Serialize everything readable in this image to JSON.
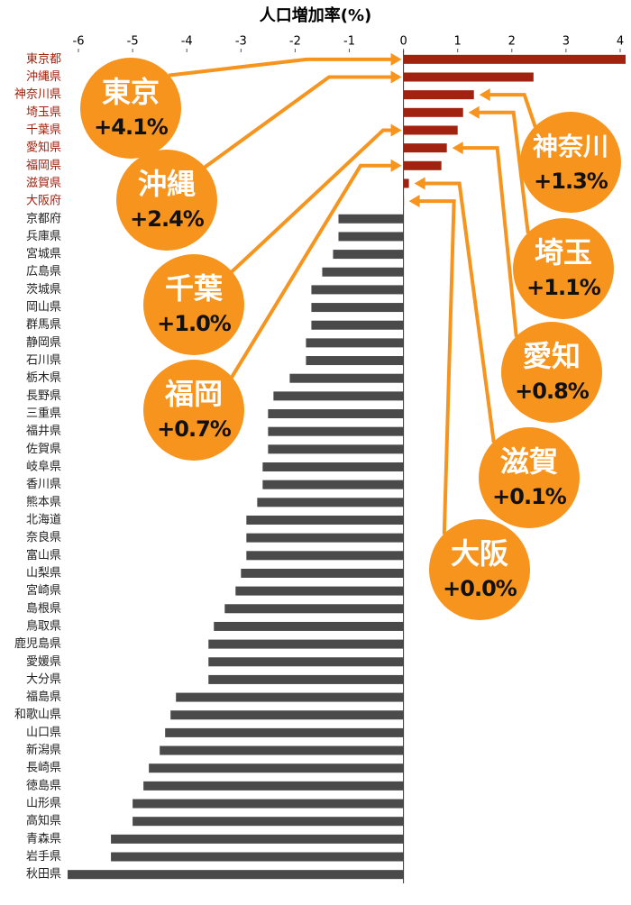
{
  "chart_data": {
    "type": "hbar",
    "title": "人口増加率(%)",
    "categories": [
      "東京都",
      "沖縄県",
      "神奈川県",
      "埼玉県",
      "千葉県",
      "愛知県",
      "福岡県",
      "滋賀県",
      "大阪府",
      "京都府",
      "兵庫県",
      "宮城県",
      "広島県",
      "茨城県",
      "岡山県",
      "群馬県",
      "静岡県",
      "石川県",
      "栃木県",
      "長野県",
      "三重県",
      "福井県",
      "佐賀県",
      "岐阜県",
      "香川県",
      "熊本県",
      "北海道",
      "奈良県",
      "富山県",
      "山梨県",
      "宮崎県",
      "島根県",
      "鳥取県",
      "鹿児島県",
      "愛媛県",
      "大分県",
      "福島県",
      "和歌山県",
      "山口県",
      "新潟県",
      "長崎県",
      "徳島県",
      "山形県",
      "高知県",
      "青森県",
      "岩手県",
      "秋田県"
    ],
    "series": [
      {
        "values": [
          4.1,
          2.4,
          1.3,
          1.1,
          1.0,
          0.8,
          0.7,
          0.1,
          0.0,
          -1.2,
          -1.2,
          -1.3,
          -1.5,
          -1.7,
          -1.7,
          -1.7,
          -1.8,
          -1.8,
          -2.1,
          -2.4,
          -2.5,
          -2.5,
          -2.5,
          -2.6,
          -2.6,
          -2.7,
          -2.9,
          -2.9,
          -2.9,
          -3.0,
          -3.1,
          -3.3,
          -3.5,
          -3.6,
          -3.6,
          -3.6,
          -4.2,
          -4.3,
          -4.4,
          -4.5,
          -4.7,
          -4.8,
          -5.0,
          -5.0,
          -5.4,
          -5.4,
          -6.2
        ],
        "value_labels": [
          "+4.1%",
          "+2.4%",
          "+1.3%",
          "+1.1%",
          "+1.0%",
          "+0.8%",
          "+0.7%",
          "+0.1%",
          "+0.0%",
          null,
          null,
          null,
          null,
          null,
          null,
          null,
          null,
          null,
          null,
          null,
          null,
          null,
          null,
          null,
          null,
          null,
          null,
          null,
          null,
          null,
          null,
          null,
          null,
          null,
          null,
          null,
          null,
          null,
          null,
          null,
          null,
          null,
          null,
          null,
          null,
          null,
          null
        ],
        "annotations": [
          "東京",
          "沖縄",
          "神奈川",
          "埼玉",
          "千葉",
          "愛知",
          "福岡",
          "滋賀",
          "大阪",
          null,
          null,
          null,
          null,
          null,
          null,
          null,
          null,
          null,
          null,
          null,
          null,
          null,
          null,
          null,
          null,
          null,
          null,
          null,
          null,
          null,
          null,
          null,
          null,
          null,
          null,
          null,
          null,
          null,
          null,
          null,
          null,
          null,
          null,
          null,
          null,
          null,
          null
        ]
      }
    ],
    "positive_color": "#a0220f",
    "negative_color": "#4a4a4a",
    "callout_color": "#f7941d",
    "xlim": [
      -6.2,
      4.1
    ],
    "xticks": [
      -6,
      -5,
      -4,
      -3,
      -2,
      -1,
      0,
      1,
      2,
      3,
      4
    ]
  }
}
